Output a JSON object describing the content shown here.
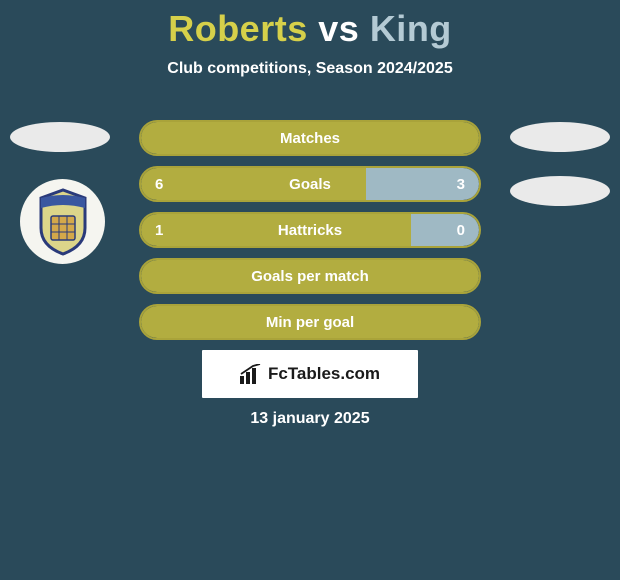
{
  "title": {
    "player1": "Roberts",
    "vs": "vs",
    "player2": "King",
    "player1_color": "#d6d04a",
    "vs_color": "#ffffff",
    "player2_color": "#b4cad4"
  },
  "subtitle": "Club competitions, Season 2024/2025",
  "background_color": "#2a4a5a",
  "bar_colors": {
    "left_fill": "#b2ad40",
    "right_fill": "#9fb9c4",
    "border": "#a9a33a",
    "text": "#ffffff"
  },
  "stats": [
    {
      "label": "Matches",
      "left_value": "",
      "right_value": "",
      "left_pct": 100,
      "right_pct": 0,
      "show_values": false
    },
    {
      "label": "Goals",
      "left_value": "6",
      "right_value": "3",
      "left_pct": 66.7,
      "right_pct": 33.3,
      "show_values": true
    },
    {
      "label": "Hattricks",
      "left_value": "1",
      "right_value": "0",
      "left_pct": 80,
      "right_pct": 20,
      "show_values": true
    },
    {
      "label": "Goals per match",
      "left_value": "",
      "right_value": "",
      "left_pct": 100,
      "right_pct": 0,
      "show_values": false
    },
    {
      "label": "Min per goal",
      "left_value": "",
      "right_value": "",
      "left_pct": 100,
      "right_pct": 0,
      "show_values": false
    }
  ],
  "attribution": "FcTables.com",
  "date": "13 january 2025",
  "crest": {
    "shield_fill": "#dcd58a",
    "shield_stroke": "#2a3a7a",
    "band_fill": "#3a57a0",
    "band_text": "S RYHOPE C",
    "detail_fill": "#d4a84a"
  }
}
